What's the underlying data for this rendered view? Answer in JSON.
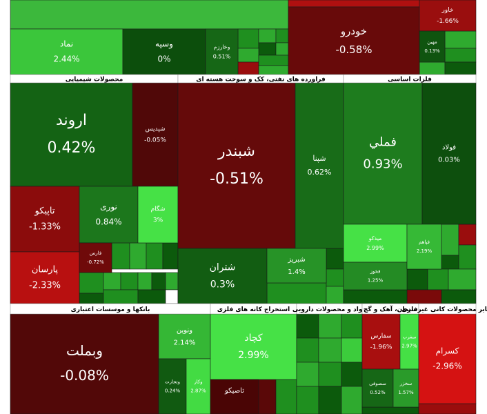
{
  "chart_data": {
    "type": "treemap",
    "sectors": [
      {
        "names": [
          "نماد",
          "وسپه",
          "وخارزم",
          "خودرو",
          "خاور",
          "مهین"
        ],
        "values": [
          2.44,
          0,
          0.51,
          -0.58,
          -1.66,
          0.13
        ],
        "value_labels": [
          "2.44%",
          "0%",
          "0.51%",
          "-0.58%",
          "-1.66%",
          "0.13%"
        ]
      },
      {
        "name": "محصولات شیمیایی",
        "names": [
          "اروند",
          "شپدیس",
          "تاپیکو",
          "پارسان",
          "نوری",
          "شگام",
          "فارس"
        ],
        "values": [
          0.42,
          -0.05,
          -1.33,
          -2.33,
          0.84,
          3,
          -0.72
        ],
        "value_labels": [
          "0.42%",
          "-0.05%",
          "-1.33%",
          "-2.33%",
          "0.84%",
          "3%",
          "-0.72%"
        ]
      },
      {
        "name": "فراورده های نفتی، کک و سوخت هسته ای",
        "names": [
          "شبندر",
          "شپنا",
          "شتران",
          "شبریز"
        ],
        "values": [
          -0.51,
          0.62,
          0.3,
          1.4
        ],
        "value_labels": [
          "-0.51%",
          "0.62%",
          "0.3%",
          "1.4%"
        ]
      },
      {
        "name": "فلزات اساسی",
        "names": [
          "فملي",
          "فولاد",
          "میدکو",
          "فخوز",
          "فپاهم"
        ],
        "values": [
          0.93,
          0.03,
          2.99,
          1.25,
          2.19
        ],
        "value_labels": [
          "0.93%",
          "0.03%",
          "2.99%",
          "1.25%",
          "2.19%"
        ]
      },
      {
        "name": "بانکها و موسسات اعتباری",
        "names": [
          "وبملت",
          "ونوین",
          "وتجارت",
          "وکار"
        ],
        "values": [
          -0.08,
          2.14,
          0.24,
          2.87
        ],
        "value_labels": [
          "-0.08%",
          "2.14%",
          "0.24%",
          "2.87%"
        ]
      },
      {
        "name": "استخراج کانه های فلزی",
        "names": [
          "کچاد",
          "تاصیکو"
        ],
        "values": [
          2.99,
          null
        ],
        "value_labels": [
          "2.99%",
          null
        ]
      },
      {
        "name": "مواد و محصولات دارویی",
        "names": [],
        "values": [],
        "value_labels": []
      },
      {
        "name": "سیمان، آهک و گچ",
        "names": [
          "سفارس",
          "سغرب",
          "سصوفی",
          "سخزر"
        ],
        "values": [
          -1.96,
          2.97,
          0.52,
          1.57
        ],
        "value_labels": [
          "-1.96%",
          "2.97%",
          "0.52%",
          "1.57%"
        ]
      },
      {
        "name": "سایر محصولات کانی غیرفلزی",
        "names": [
          "کسرام"
        ],
        "values": [
          -2.96
        ],
        "value_labels": [
          "-2.96%"
        ]
      }
    ]
  }
}
